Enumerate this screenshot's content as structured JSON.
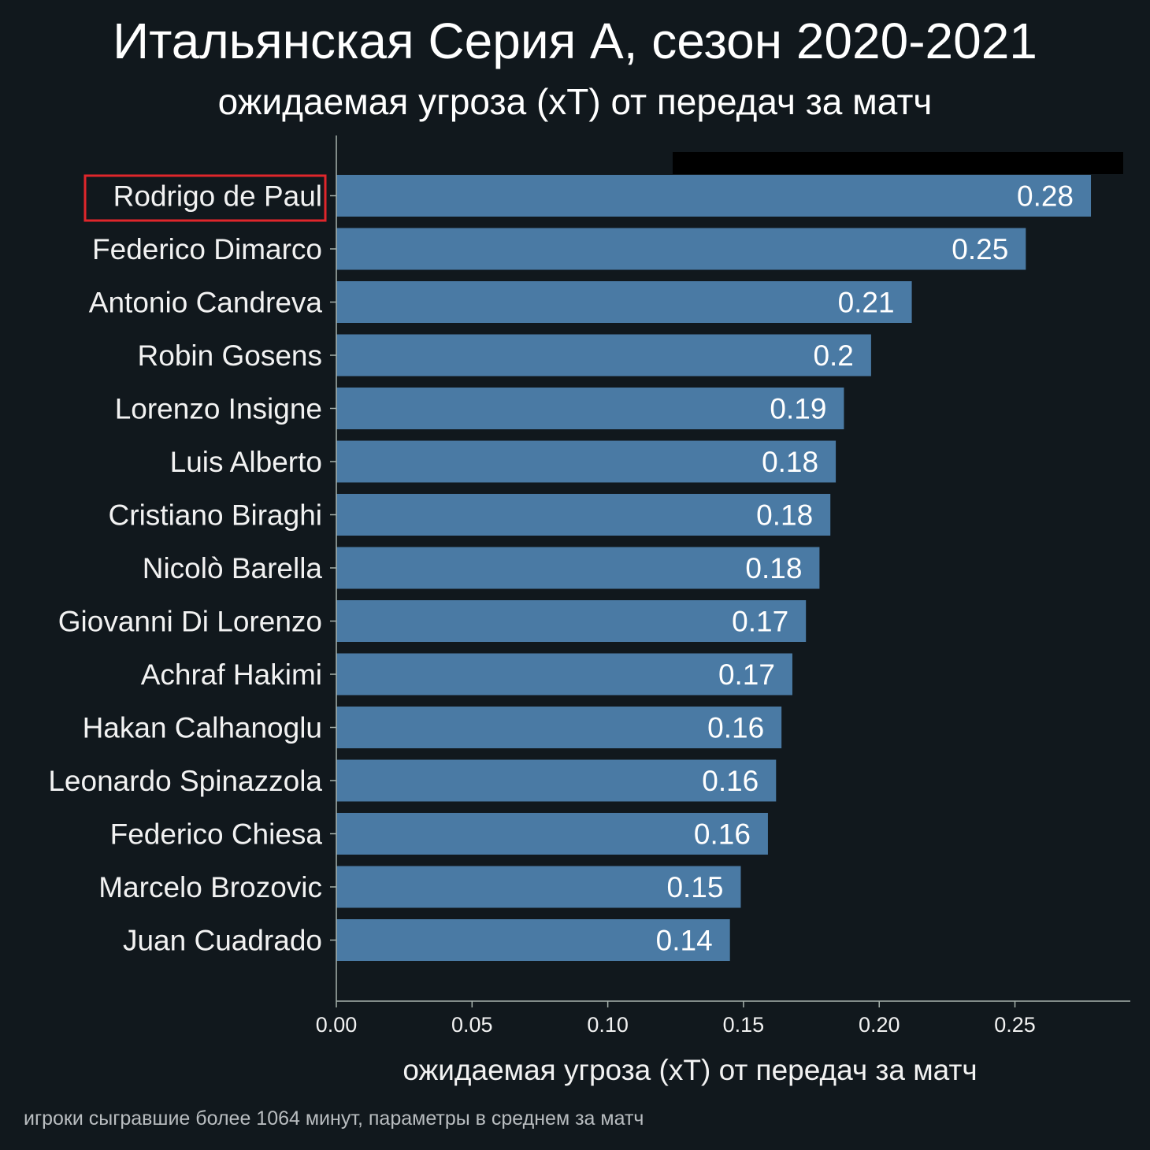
{
  "title": "Итальянская Серия А, сезон 2020-2021",
  "subtitle": "ожидаемая угроза (xT) от передач за матч",
  "footnote": "игроки сыгравшие более 1064 минут, параметры в среднем за матч",
  "colors": {
    "background": "#11181d",
    "bar": "#4a7aa4",
    "highlight_box": "#e0262b",
    "axis": "#a7b2ad",
    "text": "#f2f2f2"
  },
  "highlighted_player": "Rodrigo de Paul",
  "chart_data": {
    "type": "bar",
    "orientation": "horizontal",
    "categories": [
      "Rodrigo de Paul",
      "Federico Dimarco",
      "Antonio Candreva",
      "Robin Gosens",
      "Lorenzo Insigne",
      "Luis Alberto",
      "Cristiano Biraghi",
      "Nicolò Barella",
      "Giovanni Di Lorenzo",
      "Achraf Hakimi",
      "Hakan Calhanoglu",
      "Leonardo Spinazzola",
      "Federico Chiesa",
      "Marcelo Brozovic",
      "Juan Cuadrado"
    ],
    "values": [
      0.278,
      0.254,
      0.212,
      0.197,
      0.187,
      0.184,
      0.182,
      0.178,
      0.173,
      0.168,
      0.164,
      0.162,
      0.159,
      0.149,
      0.145
    ],
    "value_labels": [
      "0.28",
      "0.25",
      "0.21",
      "0.2",
      "0.19",
      "0.18",
      "0.18",
      "0.18",
      "0.17",
      "0.17",
      "0.16",
      "0.16",
      "0.16",
      "0.15",
      "0.14"
    ],
    "xlabel": "ожидаемая угроза (xT) от передач за матч",
    "ylabel": "",
    "xlim": [
      0,
      0.2925
    ],
    "xticks": [
      0.0,
      0.05,
      0.1,
      0.15,
      0.2,
      0.25
    ],
    "xtick_labels": [
      "0.00",
      "0.05",
      "0.10",
      "0.15",
      "0.20",
      "0.25"
    ],
    "grid": false,
    "legend": "none"
  }
}
